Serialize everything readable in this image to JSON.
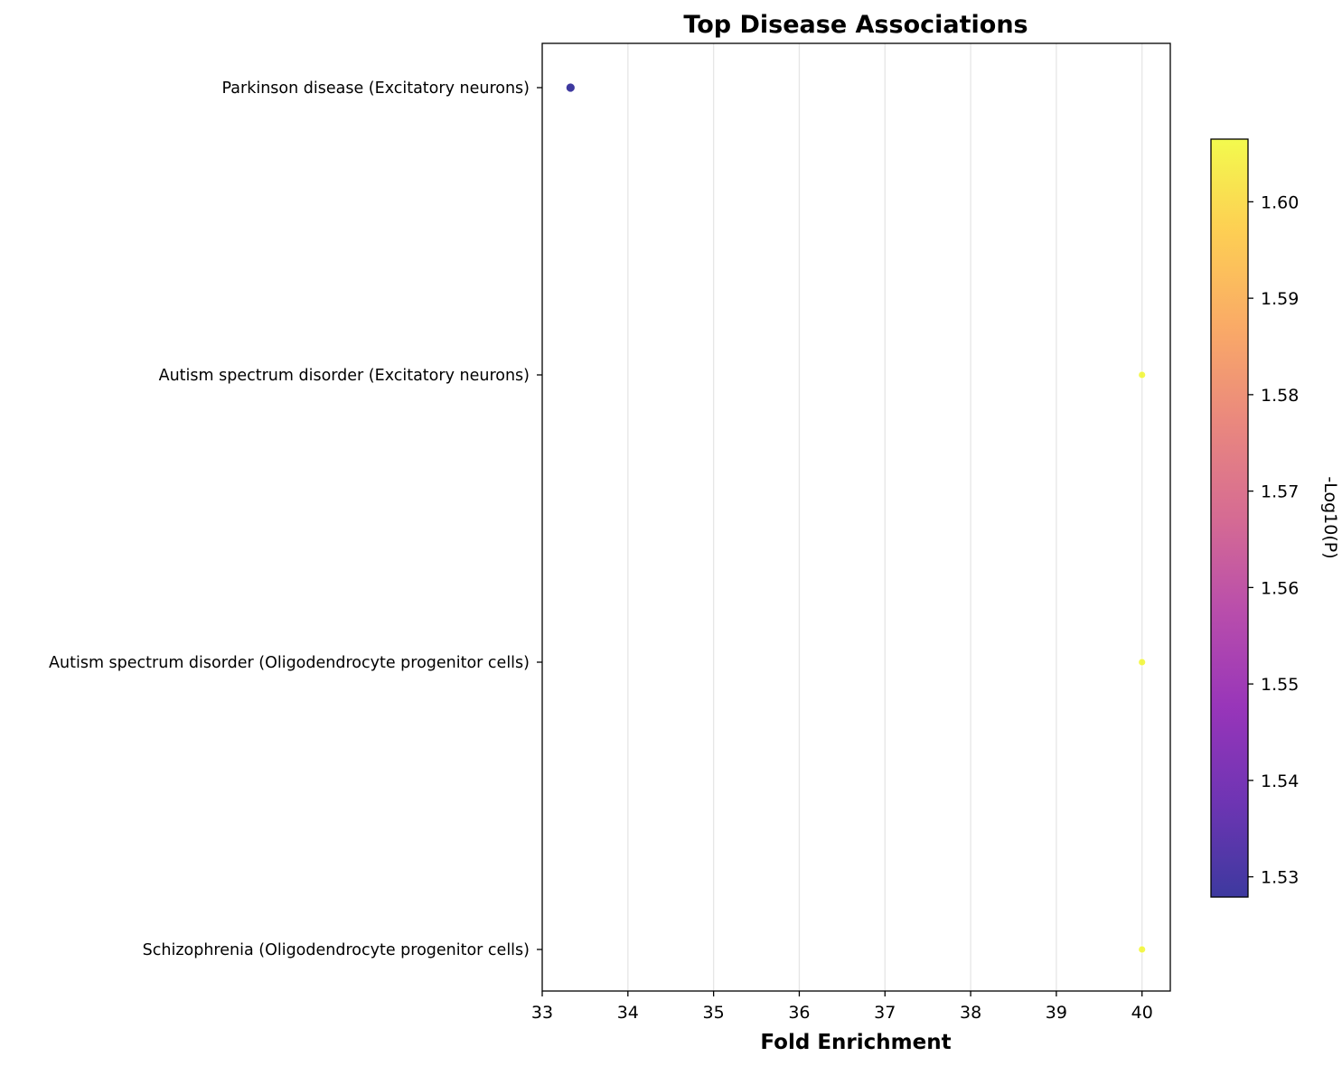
{
  "chart_data": {
    "type": "scatter",
    "title": "Top Disease Associations",
    "xlabel": "Fold Enrichment",
    "ylabel": "",
    "xlim": [
      33,
      40.33
    ],
    "x_ticks": [
      "33",
      "34",
      "35",
      "36",
      "37",
      "38",
      "39",
      "40"
    ],
    "x_grid": true,
    "categories": [
      "Parkinson disease (Excitatory neurons)",
      "Autism spectrum disorder (Excitatory neurons)",
      "Autism spectrum disorder (Oligodendrocyte progenitor cells)",
      "Schizophrenia (Oligodendrocyte progenitor cells)"
    ],
    "points": [
      {
        "category": "Parkinson disease (Excitatory neurons)",
        "fold_enrichment": 33.33,
        "neg_log10_p": 1.528
      },
      {
        "category": "Autism spectrum disorder (Excitatory neurons)",
        "fold_enrichment": 40.0,
        "neg_log10_p": 1.606
      },
      {
        "category": "Autism spectrum disorder (Oligodendrocyte progenitor cells)",
        "fold_enrichment": 40.0,
        "neg_log10_p": 1.606
      },
      {
        "category": "Schizophrenia (Oligodendrocyte progenitor cells)",
        "fold_enrichment": 40.0,
        "neg_log10_p": 1.606
      }
    ],
    "colorbar": {
      "label": "-Log10(P)",
      "colormap": "plasma",
      "range": [
        1.5279,
        1.6065
      ],
      "ticks": [
        "1.53",
        "1.54",
        "1.55",
        "1.56",
        "1.57",
        "1.58",
        "1.59",
        "1.60"
      ]
    }
  }
}
